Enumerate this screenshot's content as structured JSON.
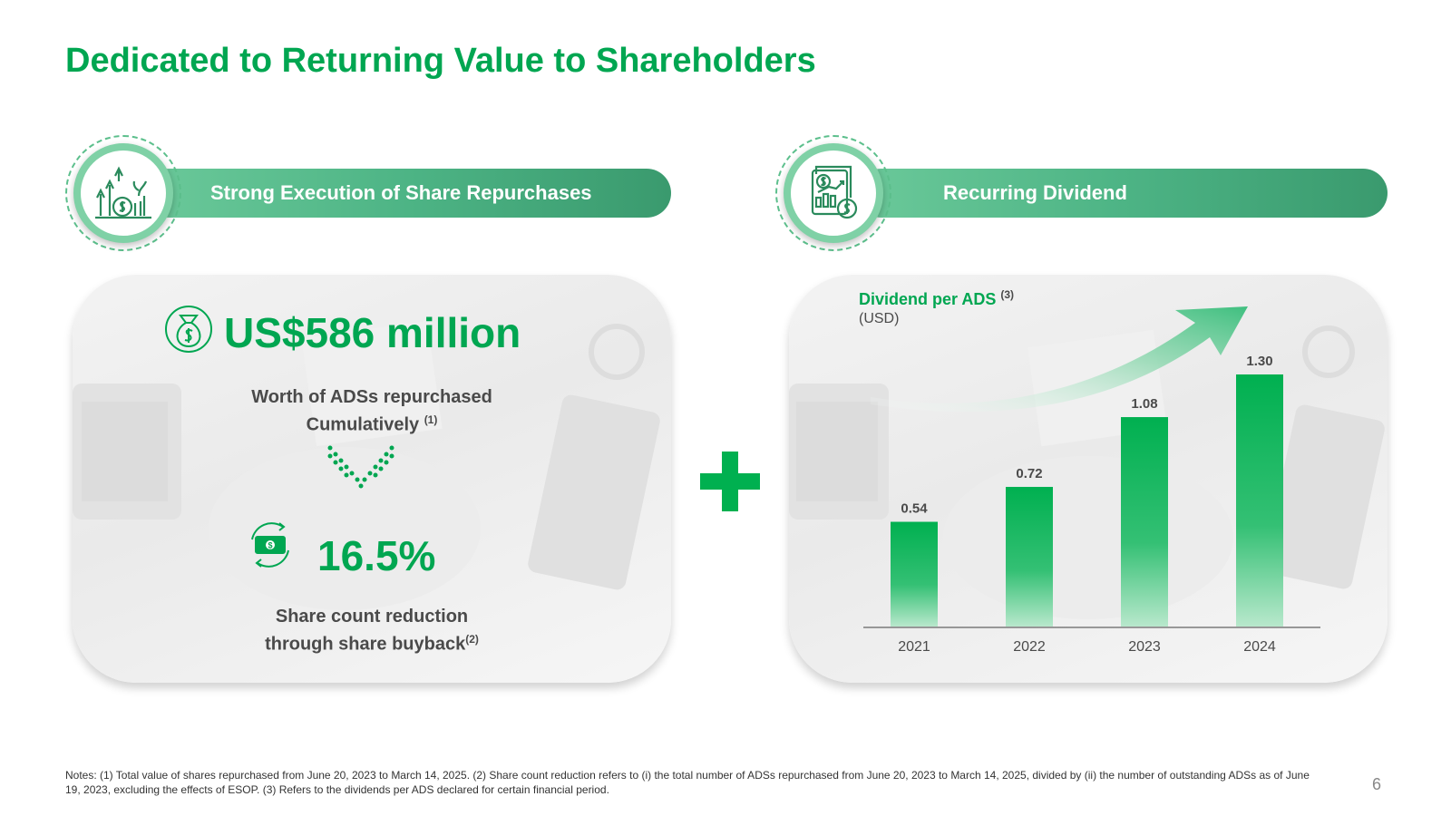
{
  "slide": {
    "title": "Dedicated to Returning Value to Shareholders",
    "page_number": "6"
  },
  "left_section": {
    "header": "Strong Execution of Share Repurchases",
    "amount": "US$586 million",
    "amount_desc_line1": "Worth of ADSs repurchased",
    "amount_desc_line2": "Cumulatively",
    "amount_note": "(1)",
    "percent": "16.5%",
    "percent_desc_line1": "Share count reduction",
    "percent_desc_line2": "through share buyback",
    "percent_note": "(2)"
  },
  "right_section": {
    "header": "Recurring Dividend"
  },
  "chart_data": {
    "type": "bar",
    "title": "Dividend per ADS",
    "title_note": "(3)",
    "subtitle": "(USD)",
    "categories": [
      "2021",
      "2022",
      "2023",
      "2024"
    ],
    "values": [
      0.54,
      0.72,
      1.08,
      1.3
    ],
    "value_labels": [
      "0.54",
      "0.72",
      "1.08",
      "1.30"
    ],
    "ylim": [
      0,
      1.3
    ],
    "grid": false,
    "legend": "none",
    "bar_color": "#00b050"
  },
  "notes": "Notes: (1) Total value of shares repurchased from June 20, 2023 to March 14, 2025. (2) Share count reduction refers to (i) the total number of ADSs repurchased from June 20, 2023 to March 14, 2025, divided by (ii) the number of outstanding ADSs as of June 19, 2023, excluding the effects of ESOP. (3) Refers to the dividends per ADS declared for certain financial period.",
  "colors": {
    "accent": "#00a651",
    "pill": "#4db485"
  },
  "icons": {
    "left_badge": "growth-chart-money-icon",
    "right_badge": "financial-report-icon",
    "money_bag": "money-bag-icon",
    "banknote_cycle": "banknote-cycle-icon",
    "down_arrow": "dotted-down-arrow-icon"
  }
}
